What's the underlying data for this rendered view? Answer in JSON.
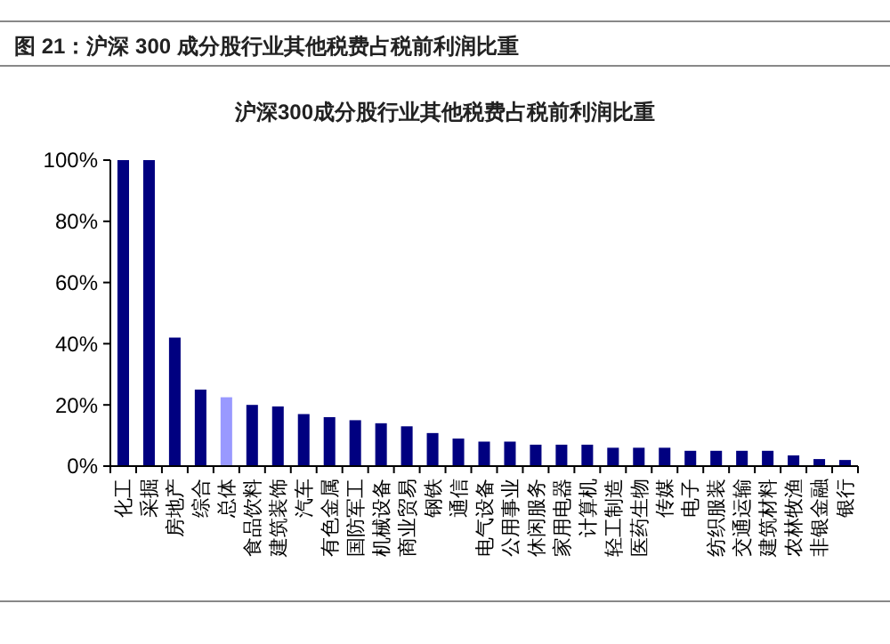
{
  "chart_data": {
    "type": "bar",
    "title": "图 21：沪深 300 成分股行业其他税费占税前利润比重",
    "subtitle": "沪深300成分股行业其他税费占税前利润比重",
    "categories": [
      "化工",
      "采掘",
      "房地产",
      "综合",
      "总体",
      "食品饮料",
      "建筑装饰",
      "汽车",
      "有色金属",
      "国防军工",
      "机械设备",
      "商业贸易",
      "钢铁",
      "通信",
      "电气设备",
      "公用事业",
      "休闲服务",
      "家用电器",
      "计算机",
      "轻工制造",
      "医药生物",
      "传媒",
      "电子",
      "纺织服装",
      "交通运输",
      "建筑材料",
      "农林牧渔",
      "非银金融",
      "银行"
    ],
    "values": [
      100,
      100,
      42,
      25,
      22.5,
      20,
      19.5,
      17,
      16,
      15,
      14,
      13,
      10.8,
      9,
      8,
      8,
      7,
      7,
      7,
      6,
      6,
      6,
      5,
      5,
      5,
      5,
      3.5,
      2.3,
      2
    ],
    "colors": [
      "#000080",
      "#000080",
      "#000080",
      "#000080",
      "#9999ff",
      "#000080",
      "#000080",
      "#000080",
      "#000080",
      "#000080",
      "#000080",
      "#000080",
      "#000080",
      "#000080",
      "#000080",
      "#000080",
      "#000080",
      "#000080",
      "#000080",
      "#000080",
      "#000080",
      "#000080",
      "#000080",
      "#000080",
      "#000080",
      "#000080",
      "#000080",
      "#000080",
      "#000080"
    ],
    "ylim": [
      0,
      100
    ],
    "yticks": [
      {
        "value": 0,
        "label": "0%"
      },
      {
        "value": 20,
        "label": "20%"
      },
      {
        "value": 40,
        "label": "40%"
      },
      {
        "value": 60,
        "label": "60%"
      },
      {
        "value": 80,
        "label": "80%"
      },
      {
        "value": 100,
        "label": "100%"
      }
    ],
    "grid": false
  }
}
